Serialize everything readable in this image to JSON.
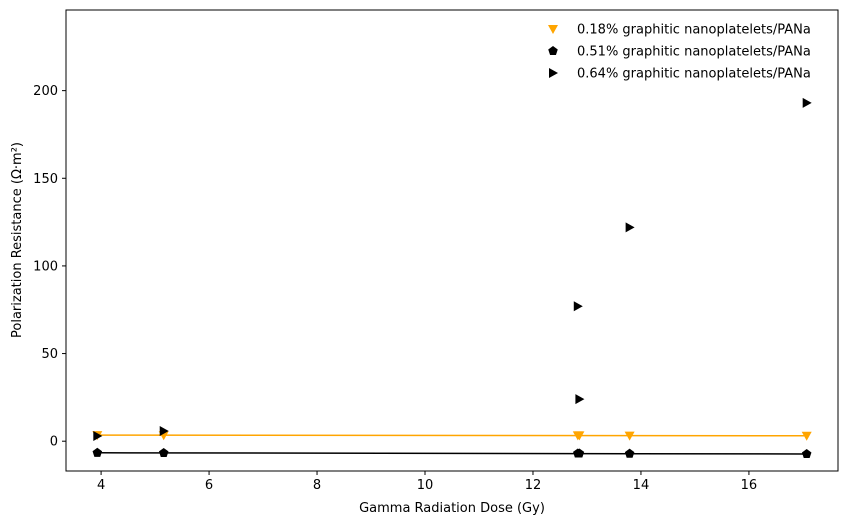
{
  "chart_data": {
    "type": "scatter",
    "title": "",
    "xlabel": "Gamma Radiation Dose (Gy)",
    "ylabel": "Polarization Resistance (Ω·m²)",
    "xlim": [
      3.35,
      17.65
    ],
    "ylim": [
      -17,
      246
    ],
    "xticks": [
      4,
      6,
      8,
      10,
      12,
      14,
      16
    ],
    "yticks": [
      0,
      50,
      100,
      150,
      200
    ],
    "legend_position": "top-right",
    "grid": false,
    "series": [
      {
        "name": "0.18% graphitic nanoplatelets/PANa",
        "marker": "triangle-down",
        "color": "#FFA500",
        "x": [
          3.93,
          5.16,
          12.83,
          12.86,
          13.79,
          17.07
        ],
        "y": [
          3.5,
          3.4,
          3.3,
          3.3,
          3.2,
          3.1
        ],
        "trend_line": {
          "x": [
            3.93,
            17.07
          ],
          "y": [
            3.5,
            3.1
          ]
        }
      },
      {
        "name": "0.51% graphitic nanoplatelets/PANa",
        "marker": "pentagon",
        "color": "#000000",
        "x": [
          3.93,
          5.16,
          12.83,
          12.86,
          13.79,
          17.07
        ],
        "y": [
          -6.6,
          -6.7,
          -7.0,
          -7.0,
          -7.1,
          -7.3
        ],
        "trend_line": {
          "x": [
            3.93,
            17.07
          ],
          "y": [
            -6.6,
            -7.3
          ]
        }
      },
      {
        "name": "0.64% graphitic nanoplatelets/PANa",
        "marker": "triangle-right",
        "color": "#000000",
        "x": [
          3.93,
          5.16,
          12.83,
          12.86,
          13.79,
          17.07
        ],
        "y": [
          3.0,
          5.8,
          77.0,
          24.0,
          122.0,
          193.0
        ]
      }
    ]
  }
}
